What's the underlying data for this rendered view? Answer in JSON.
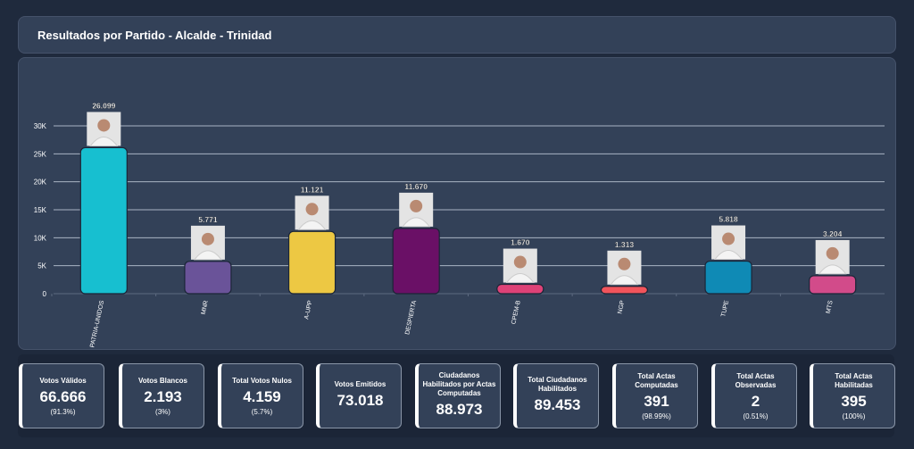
{
  "title": "Resultados por Partido - Alcalde - Trinidad",
  "chart_data": {
    "type": "bar",
    "title": "",
    "categories": [
      "PATRIA-UNIDOS",
      "MNR",
      "A-UPP",
      "DESPIERTA",
      "CPEM-B",
      "NGP",
      "TUPE",
      "MTS"
    ],
    "values": [
      26099,
      5771,
      11121,
      11670,
      1670,
      1313,
      5818,
      3204
    ],
    "data_labels": [
      "26.099",
      "5.771",
      "11.121",
      "11.670",
      "1.670",
      "1.313",
      "5.818",
      "3.204"
    ],
    "colors": [
      "#17bfd0",
      "#6a5399",
      "#edc843",
      "#6a1066",
      "#de4277",
      "#f2545b",
      "#0f8ab5",
      "#d24b8a"
    ],
    "y_ticks": [
      0,
      5000,
      10000,
      15000,
      20000,
      25000,
      30000
    ],
    "y_tick_labels": [
      "0",
      "5K",
      "10K",
      "15K",
      "20K",
      "25K",
      "30K"
    ],
    "ylim": [
      0,
      30000
    ],
    "grid": true,
    "candidate_photos": true
  },
  "stats": [
    {
      "label": "Votos Válidos",
      "value": "66.666",
      "pct": "(91.3%)"
    },
    {
      "label": "Votos Blancos",
      "value": "2.193",
      "pct": "(3%)"
    },
    {
      "label": "Total Votos Nulos",
      "value": "4.159",
      "pct": "(5.7%)"
    },
    {
      "label": "Votos Emitidos",
      "value": "73.018",
      "pct": null
    },
    {
      "label": "Ciudadanos Habilitados por Actas Computadas",
      "value": "88.973",
      "pct": null
    },
    {
      "label": "Total Ciudadanos Habilitados",
      "value": "89.453",
      "pct": null
    },
    {
      "label": "Total Actas Computadas",
      "value": "391",
      "pct": "(98.99%)"
    },
    {
      "label": "Total Actas Observadas",
      "value": "2",
      "pct": "(0.51%)"
    },
    {
      "label": "Total Actas Habilitadas",
      "value": "395",
      "pct": "(100%)"
    }
  ]
}
